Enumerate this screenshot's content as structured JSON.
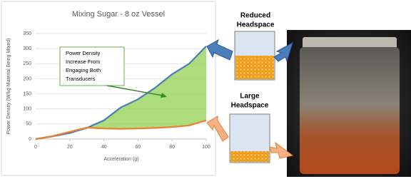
{
  "chart_data": {
    "type": "line",
    "title": "Mixing Sugar - 8 oz Vessel",
    "x_label": "Acceleration (g)",
    "y_label": "Power Density (W/kg Material Being Mixed)",
    "x": [
      0,
      10,
      20,
      30,
      40,
      50,
      60,
      70,
      80,
      90,
      100
    ],
    "series": [
      {
        "color": "#4a7ebb",
        "values": [
          0,
          9,
          20,
          37,
          62,
          105,
          132,
          170,
          215,
          250,
          308
        ]
      },
      {
        "color": "#ed7d31",
        "values": [
          0,
          10,
          24,
          38,
          35,
          34,
          35,
          37,
          40,
          45,
          62
        ]
      }
    ],
    "fill_between_color": "#92d050",
    "xlim": [
      0,
      100
    ],
    "xticks": [
      0,
      20,
      40,
      60,
      80,
      100
    ],
    "ylim": [
      0,
      350
    ],
    "yticks": [
      0,
      50,
      100,
      150,
      200,
      250,
      300,
      350
    ],
    "grid": true,
    "annotation": [
      "Power Density",
      "Increase From",
      "Engaging Both",
      "Transducers"
    ]
  },
  "diagram": {
    "reduced_label": [
      "Reduced",
      "Headspace"
    ],
    "large_label": [
      "Large",
      "Headspace"
    ]
  }
}
